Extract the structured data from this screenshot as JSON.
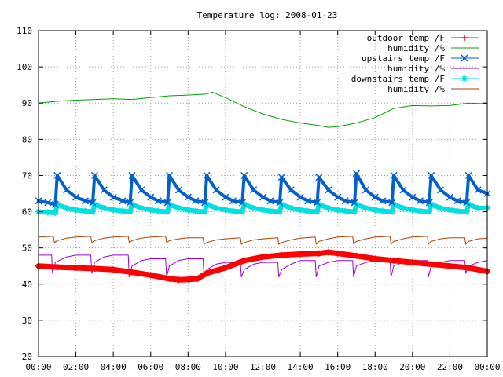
{
  "chart_data": {
    "type": "line",
    "title": "Temperature log: 2008-01-23",
    "xlabel": "",
    "ylabel": "",
    "ylim": [
      20,
      110
    ],
    "xlim": [
      "00:00",
      "24:00"
    ],
    "grid": true,
    "legend_position": "top-right",
    "x_ticks": [
      "00:00",
      "02:00",
      "04:00",
      "06:00",
      "08:00",
      "10:00",
      "12:00",
      "14:00",
      "16:00",
      "18:00",
      "20:00",
      "22:00",
      "00:00"
    ],
    "y_ticks": [
      "20",
      "30",
      "40",
      "50",
      "60",
      "70",
      "80",
      "90",
      "100",
      "110"
    ],
    "series": [
      {
        "name": "outdoor temp /F",
        "color": "#ff0000",
        "marker": "plus",
        "x": [
          0,
          1,
          2,
          3,
          4,
          5,
          6,
          7,
          7.5,
          8,
          8.5,
          9,
          10,
          11,
          12,
          13,
          14,
          15,
          15.5,
          16,
          17,
          18,
          19,
          20,
          21,
          22,
          23,
          24
        ],
        "values": [
          45,
          44.7,
          44.5,
          44.3,
          44,
          43.3,
          42.5,
          41.5,
          41.2,
          41.3,
          41.5,
          43,
          44.5,
          46.5,
          47.5,
          48,
          48.3,
          48.5,
          48.8,
          48.5,
          47.8,
          47,
          46.5,
          46,
          45.5,
          45,
          44.5,
          43.5
        ]
      },
      {
        "name": "humidity /%",
        "color": "#00a000",
        "marker": "none",
        "x": [
          0,
          1,
          2,
          3,
          4,
          5,
          6,
          7,
          8,
          9,
          9.3,
          10,
          11,
          12,
          13,
          14,
          15,
          15.5,
          16,
          17,
          18,
          19,
          20,
          21,
          22,
          23,
          24
        ],
        "values": [
          90,
          90.5,
          90.8,
          91,
          91.2,
          91,
          91.5,
          92,
          92.2,
          92.5,
          93,
          91.5,
          89,
          87,
          85.5,
          84.5,
          83.8,
          83.3,
          83.5,
          84.5,
          86,
          88.5,
          89.3,
          89.2,
          89.3,
          90,
          89.8
        ]
      },
      {
        "name": "upstairs temp /F",
        "color": "#0060d0",
        "marker": "cross",
        "x": [
          0,
          0.5,
          0.9,
          1.0,
          1.5,
          2.0,
          2.5,
          2.9,
          3.0,
          3.5,
          4.0,
          4.5,
          4.9,
          5.0,
          5.5,
          6.0,
          6.4,
          6.9,
          7.0,
          7.5,
          8.0,
          8.4,
          8.9,
          9.0,
          9.5,
          10.0,
          10.4,
          10.9,
          11.0,
          11.5,
          12.0,
          12.4,
          12.9,
          13.0,
          13.5,
          14.0,
          14.4,
          14.9,
          15.0,
          15.5,
          16.0,
          16.4,
          16.9,
          17.0,
          17.5,
          18.0,
          18.4,
          18.9,
          19.0,
          19.5,
          20.0,
          20.4,
          20.9,
          21.0,
          21.5,
          22.0,
          22.4,
          22.9,
          23.0,
          23.5,
          24.0
        ],
        "values": [
          63,
          62.5,
          62,
          70,
          66,
          64,
          63,
          62.5,
          70,
          66,
          64,
          63,
          62.5,
          70,
          66,
          64,
          63,
          62.5,
          70,
          66,
          64,
          63,
          62.5,
          70,
          66,
          64,
          63,
          62.5,
          70,
          66,
          64,
          63,
          62.5,
          69.5,
          66,
          64,
          63,
          62.5,
          69.5,
          66,
          64,
          63,
          62.5,
          70.5,
          66,
          64,
          63,
          62.5,
          70,
          66,
          64,
          63,
          62.5,
          70,
          66,
          64,
          63,
          62.5,
          70,
          66,
          65
        ]
      },
      {
        "name": "humidity /%",
        "color": "#a000d0",
        "marker": "none",
        "x": [
          0,
          0.7,
          0.75,
          0.9,
          1.5,
          2.0,
          2.8,
          2.85,
          3.0,
          3.5,
          4.0,
          4.8,
          4.85,
          5.0,
          5.5,
          6.0,
          6.8,
          6.85,
          7.0,
          7.5,
          8.0,
          8.8,
          8.85,
          9.0,
          9.5,
          10.0,
          10.8,
          10.85,
          11.0,
          11.5,
          12.0,
          12.8,
          12.85,
          13.0,
          13.5,
          14.0,
          14.8,
          14.85,
          15.0,
          15.5,
          16.0,
          16.8,
          16.85,
          17.0,
          17.5,
          18.0,
          18.8,
          18.85,
          19.0,
          19.5,
          20.0,
          20.8,
          20.85,
          21.0,
          21.5,
          22.0,
          22.8,
          22.85,
          23.0,
          23.5,
          24.0
        ],
        "values": [
          48,
          48,
          43,
          46,
          47.5,
          48,
          48,
          43,
          46,
          47.5,
          48,
          48,
          42,
          45,
          46.5,
          47,
          47,
          42,
          45,
          46.5,
          47,
          47,
          42,
          44,
          45.5,
          46,
          46,
          42,
          44,
          45.5,
          46,
          46,
          42,
          44,
          45.5,
          46.5,
          46.5,
          42,
          45,
          46,
          46.5,
          46.5,
          42,
          45,
          46,
          46.5,
          46.5,
          42,
          45,
          46,
          46.5,
          46.5,
          42,
          45,
          46,
          46.5,
          46.5,
          43,
          45,
          46,
          46.5
        ]
      },
      {
        "name": "downstairs temp /F",
        "color": "#00e0e0",
        "marker": "star",
        "x": [
          0,
          0.5,
          0.9,
          1.0,
          1.5,
          2.0,
          2.5,
          2.9,
          3.0,
          3.5,
          4.0,
          4.5,
          4.9,
          5.0,
          5.5,
          6.0,
          6.4,
          6.9,
          7.0,
          7.5,
          8.0,
          8.4,
          8.9,
          9.0,
          9.5,
          10.0,
          10.4,
          10.9,
          11.0,
          11.5,
          12.0,
          12.4,
          12.9,
          13.0,
          13.5,
          14.0,
          14.4,
          14.9,
          15.0,
          15.5,
          16.0,
          16.4,
          16.9,
          17.0,
          17.5,
          18.0,
          18.4,
          18.9,
          19.0,
          19.5,
          20.0,
          20.4,
          20.9,
          21.0,
          21.5,
          22.0,
          22.4,
          22.9,
          23.0,
          23.5,
          24.0
        ],
        "values": [
          60,
          59.8,
          59.7,
          62,
          61,
          60.5,
          60.2,
          60,
          62,
          61,
          60.5,
          60.2,
          60,
          62,
          61,
          60.5,
          60.2,
          60,
          62,
          61,
          60.5,
          60.2,
          60,
          62,
          61,
          60.5,
          60.2,
          60,
          62,
          61,
          60.5,
          60.2,
          60,
          62,
          61,
          60.5,
          60.2,
          60,
          62,
          61,
          60.5,
          60.2,
          60,
          62,
          61,
          60.5,
          60.2,
          60,
          62,
          61,
          60.5,
          60.2,
          60,
          62,
          61,
          60.5,
          60.2,
          60,
          62,
          61,
          61
        ]
      },
      {
        "name": "humidity /%",
        "color": "#b04000",
        "marker": "none",
        "x": [
          0,
          0.8,
          0.85,
          1.0,
          1.5,
          2.0,
          2.8,
          2.85,
          3.0,
          3.5,
          4.0,
          4.8,
          4.85,
          5.0,
          5.5,
          6.0,
          6.8,
          6.85,
          7.0,
          7.5,
          8.0,
          8.8,
          8.85,
          9.0,
          9.5,
          10.0,
          10.8,
          10.85,
          11.0,
          11.5,
          12.0,
          12.8,
          12.85,
          13.0,
          13.5,
          14.0,
          14.8,
          14.85,
          15.0,
          15.5,
          16.0,
          16.8,
          16.85,
          17.0,
          17.5,
          18.0,
          18.8,
          18.85,
          19.0,
          19.5,
          20.0,
          20.8,
          20.85,
          21.0,
          21.5,
          22.0,
          22.8,
          22.85,
          23.0,
          23.5,
          24.0
        ],
        "values": [
          53,
          53.2,
          51.5,
          52,
          52.7,
          53,
          53.2,
          51.5,
          52,
          52.7,
          53,
          53.2,
          51.5,
          52,
          52.7,
          53,
          53.2,
          51.5,
          52,
          52.5,
          52.8,
          52.8,
          51,
          51.5,
          52.2,
          52.5,
          52.8,
          51,
          51.5,
          52.2,
          52.5,
          52.8,
          51,
          51.5,
          52.2,
          52.7,
          53,
          51,
          51.8,
          52.5,
          53,
          53.2,
          51,
          51.8,
          52.5,
          53,
          53.2,
          51,
          51.8,
          52.5,
          53,
          53.2,
          51,
          51.8,
          52.5,
          52.8,
          52.8,
          51,
          51.8,
          52.5,
          52.7
        ]
      }
    ]
  }
}
